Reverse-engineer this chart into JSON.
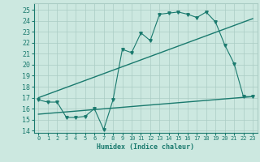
{
  "title": "",
  "xlabel": "Humidex (Indice chaleur)",
  "bg_color": "#cce8e0",
  "line_color": "#1a7a6e",
  "xlim": [
    -0.5,
    23.5
  ],
  "ylim": [
    13.8,
    25.6
  ],
  "yticks": [
    14,
    15,
    16,
    17,
    18,
    19,
    20,
    21,
    22,
    23,
    24,
    25
  ],
  "xticks": [
    0,
    1,
    2,
    3,
    4,
    5,
    6,
    7,
    8,
    9,
    10,
    11,
    12,
    13,
    14,
    15,
    16,
    17,
    18,
    19,
    20,
    21,
    22,
    23
  ],
  "main_x": [
    0,
    1,
    2,
    3,
    4,
    5,
    6,
    7,
    8,
    9,
    10,
    11,
    12,
    13,
    14,
    15,
    16,
    17,
    18,
    19,
    20,
    21,
    22,
    23
  ],
  "main_y": [
    16.8,
    16.6,
    16.6,
    15.2,
    15.2,
    15.3,
    16.0,
    14.1,
    16.8,
    21.4,
    21.1,
    22.9,
    22.2,
    24.6,
    24.7,
    24.8,
    24.6,
    24.3,
    24.8,
    23.9,
    21.8,
    20.1,
    17.1,
    17.1
  ],
  "trend1_x": [
    0,
    23
  ],
  "trend1_y": [
    17.0,
    24.2
  ],
  "trend2_x": [
    0,
    23
  ],
  "trend2_y": [
    15.5,
    17.1
  ],
  "grid_color": "#aaccc4"
}
